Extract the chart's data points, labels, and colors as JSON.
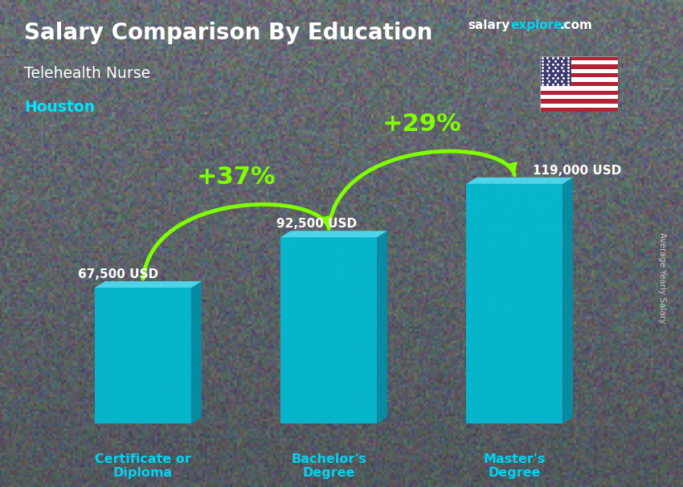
{
  "title": "Salary Comparison By Education",
  "subtitle": "Telehealth Nurse",
  "city": "Houston",
  "ylabel": "Average Yearly Salary",
  "categories": [
    "Certificate or\nDiploma",
    "Bachelor's\nDegree",
    "Master's\nDegree"
  ],
  "values": [
    67500,
    92500,
    119000
  ],
  "value_labels": [
    "67,500 USD",
    "92,500 USD",
    "119,000 USD"
  ],
  "pct_labels": [
    "+37%",
    "+29%"
  ],
  "bar_front_color": "#00bcd4",
  "bar_top_color": "#4dd9f0",
  "bar_side_color": "#0090a8",
  "bg_color": "#7a8a90",
  "title_color": "#ffffff",
  "subtitle_color": "#ffffff",
  "city_color": "#00e5ff",
  "value_color": "#ffffff",
  "pct_color": "#7fff00",
  "arrow_color": "#7fff00",
  "xlabel_color": "#00d4f5",
  "brand_salary_color": "#ffffff",
  "brand_explorer_color": "#00d4f5",
  "brand_com_color": "#ffffff",
  "rotlabel_color": "#dddddd",
  "ylim": [
    0,
    145000
  ],
  "bar_positions": [
    0,
    1,
    2
  ],
  "bar_width": 0.52
}
